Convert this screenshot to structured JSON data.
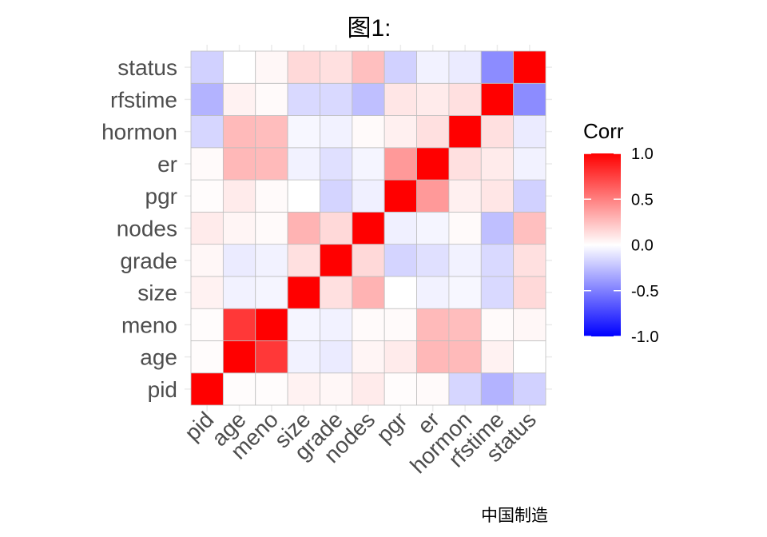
{
  "chart_data": {
    "type": "heatmap",
    "title": "图1:",
    "caption": "中国制造",
    "variables": [
      "pid",
      "age",
      "meno",
      "size",
      "grade",
      "nodes",
      "pgr",
      "er",
      "hormon",
      "rfstime",
      "status"
    ],
    "matrix": [
      [
        1.0,
        0.01,
        0.01,
        0.05,
        0.03,
        0.08,
        0.01,
        0.02,
        -0.16,
        -0.3,
        -0.18
      ],
      [
        0.01,
        1.0,
        0.78,
        -0.05,
        -0.08,
        0.04,
        0.08,
        0.28,
        0.27,
        0.05,
        0.0
      ],
      [
        0.01,
        0.78,
        1.0,
        -0.04,
        -0.05,
        0.02,
        0.02,
        0.27,
        0.26,
        0.02,
        0.03
      ],
      [
        0.05,
        -0.05,
        -0.04,
        1.0,
        0.12,
        0.3,
        0.0,
        -0.05,
        -0.03,
        -0.15,
        0.15
      ],
      [
        0.03,
        -0.08,
        -0.05,
        0.12,
        1.0,
        0.15,
        -0.17,
        -0.12,
        -0.05,
        -0.15,
        0.12
      ],
      [
        0.08,
        0.04,
        0.02,
        0.3,
        0.15,
        1.0,
        -0.06,
        -0.04,
        0.02,
        -0.25,
        0.25
      ],
      [
        0.01,
        0.08,
        0.02,
        0.0,
        -0.17,
        -0.06,
        1.0,
        0.4,
        0.06,
        0.1,
        -0.18
      ],
      [
        0.02,
        0.28,
        0.27,
        -0.05,
        -0.12,
        -0.04,
        0.4,
        1.0,
        0.12,
        0.08,
        -0.05
      ],
      [
        -0.16,
        0.27,
        0.26,
        -0.03,
        -0.05,
        0.02,
        0.06,
        0.12,
        1.0,
        0.12,
        -0.08
      ],
      [
        -0.3,
        0.05,
        0.02,
        -0.15,
        -0.15,
        -0.25,
        0.1,
        0.08,
        0.12,
        1.0,
        -0.45
      ],
      [
        -0.18,
        0.0,
        0.03,
        0.15,
        0.12,
        0.25,
        -0.18,
        -0.05,
        -0.08,
        -0.45,
        1.0
      ]
    ],
    "legend": {
      "title": "Corr",
      "placement": "right",
      "range": [
        -1,
        1
      ],
      "ticks": [
        "1.0",
        "0.5",
        "0.0",
        "-0.5",
        "-1.0"
      ],
      "tick_values": [
        1.0,
        0.5,
        0.0,
        -0.5,
        -1.0
      ],
      "colors": {
        "low": "#0000FF",
        "mid": "#FFFFFF",
        "high": "#FF0000"
      }
    },
    "grid": true,
    "cell_border_color": "#BEBEBE"
  }
}
